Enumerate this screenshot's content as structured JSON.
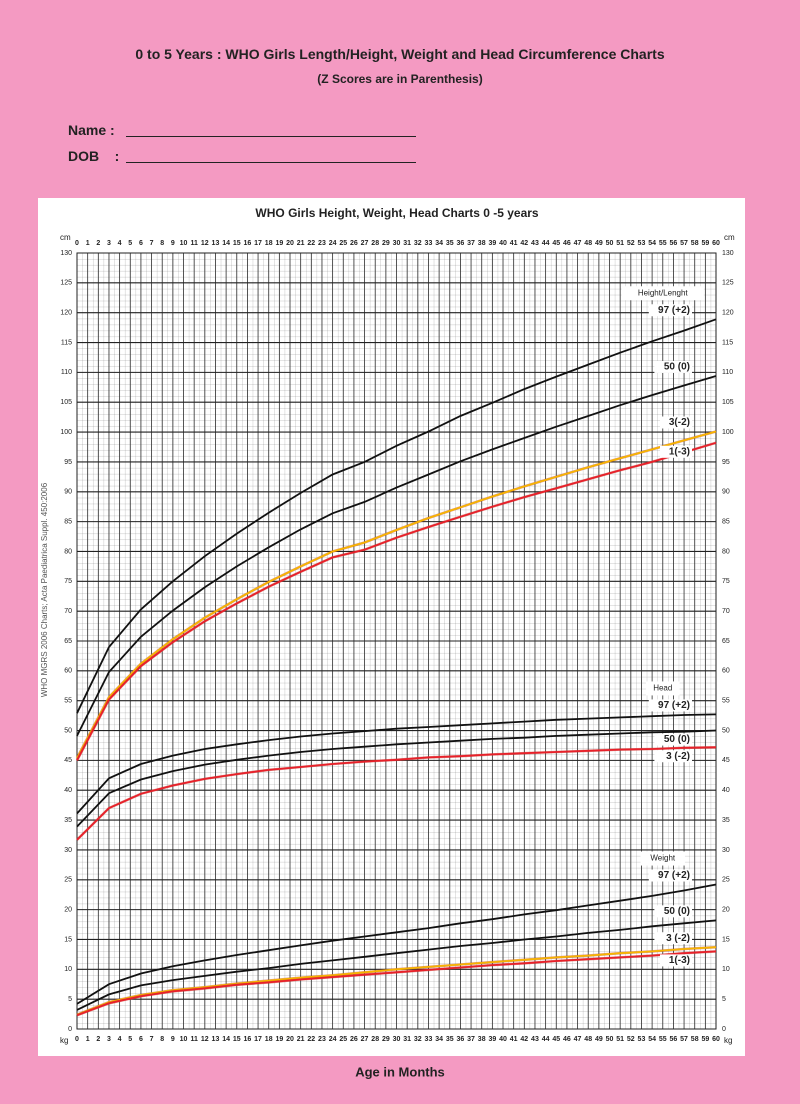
{
  "header": {
    "title": "0 to 5 Years : WHO Girls Length/Height, Weight and Head Circumference Charts",
    "subtitle": "(Z Scores are in Parenthesis)"
  },
  "form": {
    "name": "Name :",
    "dob": "DOB    :"
  },
  "chart_data": {
    "type": "line",
    "title": "WHO Girls Height, Weight, Head Charts 0 -5 years",
    "xlabel": "Age in Months",
    "y_unit": "cm",
    "y_unit_bottom": "kg",
    "source": "WHO MGRS 2006 Charts; Acta Paediatrica Suppl. 450:2006",
    "xlim": [
      0,
      60
    ],
    "xticks": [
      0,
      1,
      2,
      3,
      4,
      5,
      6,
      7,
      8,
      9,
      10,
      11,
      12,
      13,
      14,
      15,
      16,
      17,
      18,
      19,
      20,
      21,
      22,
      23,
      24,
      25,
      26,
      27,
      28,
      29,
      30,
      31,
      32,
      33,
      34,
      35,
      36,
      37,
      38,
      39,
      40,
      41,
      42,
      43,
      44,
      45,
      46,
      47,
      48,
      49,
      50,
      51,
      52,
      53,
      54,
      55,
      56,
      57,
      58,
      59,
      60
    ],
    "ylim": [
      0,
      130
    ],
    "yticks": [
      0,
      5,
      10,
      15,
      20,
      25,
      30,
      35,
      40,
      45,
      50,
      55,
      60,
      65,
      70,
      75,
      80,
      85,
      90,
      95,
      100,
      105,
      110,
      115,
      120,
      125,
      130
    ],
    "grid": true,
    "x": [
      0,
      3,
      6,
      9,
      12,
      15,
      18,
      21,
      24,
      27,
      30,
      33,
      36,
      39,
      42,
      45,
      48,
      51,
      54,
      57,
      60
    ],
    "groups": [
      {
        "name": "Height/Lenght",
        "series": [
          {
            "name": "97 (+2)",
            "color": "#111111",
            "values": [
              52.9,
              64.0,
              70.3,
              75.0,
              79.2,
              83.0,
              86.5,
              89.8,
              92.9,
              95.0,
              97.7,
              100.1,
              102.7,
              104.9,
              107.2,
              109.3,
              111.3,
              113.3,
              115.2,
              117.0,
              118.9
            ]
          },
          {
            "name": "50 (0)",
            "color": "#111111",
            "values": [
              49.1,
              59.8,
              65.7,
              70.1,
              74.0,
              77.5,
              80.7,
              83.7,
              86.4,
              88.3,
              90.7,
              92.9,
              95.1,
              97.1,
              99.0,
              100.9,
              102.7,
              104.5,
              106.2,
              107.8,
              109.4
            ]
          },
          {
            "name": "3(-2)",
            "color": "#f7b500",
            "values": [
              45.4,
              55.6,
              61.2,
              65.3,
              68.9,
              72.0,
              74.9,
              77.5,
              80.0,
              81.5,
              83.6,
              85.6,
              87.4,
              89.2,
              90.9,
              92.5,
              94.1,
              95.6,
              97.1,
              98.6,
              100.1
            ]
          },
          {
            "name": "1(-3)",
            "color": "#e8202a",
            "values": [
              45.0,
              55.2,
              60.8,
              64.8,
              68.3,
              71.3,
              74.1,
              76.6,
              79.0,
              80.3,
              82.3,
              84.1,
              85.8,
              87.5,
              89.1,
              90.6,
              92.1,
              93.6,
              95.0,
              96.6,
              98.2
            ]
          }
        ]
      },
      {
        "name": "Head",
        "series": [
          {
            "name": "97 (+2)",
            "color": "#111111",
            "values": [
              36.1,
              42.0,
              44.4,
              45.8,
              46.9,
              47.7,
              48.4,
              49.0,
              49.5,
              49.9,
              50.3,
              50.6,
              50.9,
              51.2,
              51.5,
              51.8,
              52.0,
              52.2,
              52.4,
              52.6,
              52.7
            ]
          },
          {
            "name": "50 (0)",
            "color": "#111111",
            "values": [
              33.9,
              39.5,
              41.8,
              43.2,
              44.3,
              45.1,
              45.8,
              46.4,
              46.9,
              47.3,
              47.7,
              48.0,
              48.3,
              48.6,
              48.8,
              49.1,
              49.3,
              49.5,
              49.7,
              49.8,
              50.0
            ]
          },
          {
            "name": "3 (-2)",
            "color": "#e8202a",
            "values": [
              31.7,
              37.0,
              39.4,
              40.8,
              41.9,
              42.7,
              43.4,
              43.9,
              44.4,
              44.8,
              45.1,
              45.5,
              45.7,
              46.0,
              46.2,
              46.4,
              46.6,
              46.8,
              46.9,
              47.1,
              47.2
            ]
          }
        ]
      },
      {
        "name": "Weight",
        "series": [
          {
            "name": "97 (+2)",
            "color": "#111111",
            "values": [
              4.2,
              7.5,
              9.3,
              10.5,
              11.5,
              12.4,
              13.2,
              14.0,
              14.8,
              15.5,
              16.2,
              16.9,
              17.7,
              18.4,
              19.2,
              19.9,
              20.7,
              21.5,
              22.3,
              23.2,
              24.2
            ]
          },
          {
            "name": "50 (0)",
            "color": "#111111",
            "values": [
              3.2,
              5.8,
              7.3,
              8.2,
              8.9,
              9.6,
              10.2,
              10.9,
              11.5,
              12.1,
              12.7,
              13.3,
              13.9,
              14.4,
              15.0,
              15.5,
              16.1,
              16.6,
              17.2,
              17.7,
              18.2
            ]
          },
          {
            "name": "3 (-2)",
            "color": "#f7b500",
            "values": [
              2.4,
              4.5,
              5.7,
              6.5,
              7.0,
              7.6,
              8.1,
              8.6,
              9.0,
              9.5,
              10.0,
              10.4,
              10.8,
              11.2,
              11.6,
              12.0,
              12.3,
              12.7,
              13.0,
              13.4,
              13.7
            ]
          },
          {
            "name": "1(-3)",
            "color": "#e8202a",
            "values": [
              2.3,
              4.3,
              5.5,
              6.3,
              6.8,
              7.4,
              7.8,
              8.3,
              8.7,
              9.1,
              9.5,
              9.9,
              10.3,
              10.7,
              11.0,
              11.4,
              11.7,
              12.0,
              12.3,
              12.7,
              13.0
            ]
          }
        ]
      }
    ]
  }
}
